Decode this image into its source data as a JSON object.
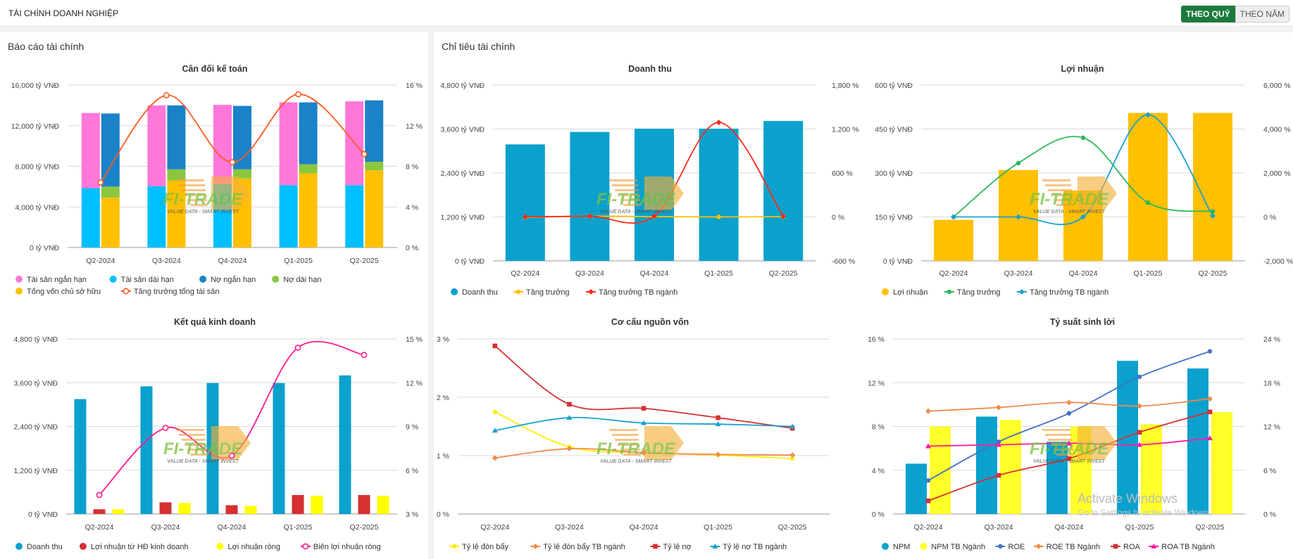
{
  "header": {
    "title": "TÀI CHÍNH DOANH NGHIỆP",
    "btn_quarter": "THEO QUÝ",
    "btn_year": "THEO NĂM"
  },
  "left_panel": {
    "title": "Báo cáo tài chính"
  },
  "right_panel": {
    "title": "Chỉ tiêu tài chính"
  },
  "watermark": {
    "logo": "FI-TRADE",
    "slogan": "VALUE DATA - SMART INVEST"
  },
  "activation": {
    "title": "Activate Windows",
    "subtitle": "Go to Settings to activate Windows."
  },
  "colors": {
    "accent": "#1c7a3c",
    "pink": "#ff77d9",
    "cyan": "#00bfff",
    "blue": "#1a82c8",
    "green": "#8cc63f",
    "yellow": "#ffc000",
    "orange": "#ff5a1f",
    "teal": "#0aa1cc",
    "red": "#d63031",
    "lime": "#ffff00"
  },
  "chart_data": [
    {
      "id": "c1",
      "type": "bar",
      "title": "Cân đối kế toán",
      "categories": [
        "Q2-2024",
        "Q3-2024",
        "Q4-2024",
        "Q1-2025",
        "Q2-2025"
      ],
      "y_left": {
        "ticks": [
          "0 tỷ VNĐ",
          "4,000 tỷ VNĐ",
          "8,000 tỷ VNĐ",
          "12,000 tỷ VNĐ",
          "16,000 tỷ VNĐ"
        ],
        "min": 0,
        "max": 16000
      },
      "y_right": {
        "ticks": [
          "0 %",
          "4 %",
          "8 %",
          "12 %",
          "16 %"
        ],
        "min": 0,
        "max": 16
      },
      "stacks": [
        {
          "name": "Tài sản ngắn hạn",
          "color": "#ff77d9",
          "group": 0,
          "values": [
            7400,
            7950,
            7800,
            8150,
            8250
          ]
        },
        {
          "name": "Tài sản dài hạn",
          "color": "#00bfff",
          "group": 0,
          "values": [
            5850,
            6050,
            6250,
            6150,
            6150
          ]
        },
        {
          "name": "Nợ ngắn hạn",
          "color": "#1a82c8",
          "group": 1,
          "values": [
            7200,
            6300,
            6250,
            6100,
            6050
          ]
        },
        {
          "name": "Nợ dài hạn",
          "color": "#8cc63f",
          "group": 1,
          "values": [
            1100,
            1100,
            900,
            900,
            850
          ]
        },
        {
          "name": "Tổng vốn chủ sở hữu",
          "color": "#ffc000",
          "group": 1,
          "values": [
            4900,
            6600,
            6800,
            7300,
            7600
          ]
        }
      ],
      "lines": [
        {
          "name": "Tăng trưởng tổng tài sản",
          "color": "#ff5a1f",
          "axis": "right",
          "marker": "circle-open",
          "values": [
            6.4,
            15.0,
            8.4,
            15.1,
            9.2
          ]
        }
      ]
    },
    {
      "id": "c2",
      "type": "bar",
      "title": "Doanh thu",
      "categories": [
        "Q2-2024",
        "Q3-2024",
        "Q4-2024",
        "Q1-2025",
        "Q2-2025"
      ],
      "y_left": {
        "ticks": [
          "0 tỷ VNĐ",
          "1,200 tỷ VNĐ",
          "2,400 tỷ VNĐ",
          "3,600 tỷ VNĐ",
          "4,800 tỷ VNĐ"
        ],
        "min": 0,
        "max": 4800
      },
      "y_right": {
        "ticks": [
          "-600 %",
          "0 %",
          "600 %",
          "1,200 %",
          "1,800 %"
        ],
        "min": -600,
        "max": 1800
      },
      "bars": [
        {
          "name": "Doanh thu",
          "color": "#0aa1cc",
          "values": [
            3180,
            3520,
            3610,
            3610,
            3820
          ]
        }
      ],
      "lines": [
        {
          "name": "Tăng trưởng",
          "color": "#ffc000",
          "axis": "right",
          "marker": "circle",
          "values": [
            -5,
            10,
            5,
            0,
            5
          ]
        },
        {
          "name": "Tăng trưởng TB ngành",
          "color": "#ff2a1a",
          "axis": "right",
          "marker": "diamond",
          "values": [
            0,
            10,
            10,
            1290,
            10
          ]
        }
      ]
    },
    {
      "id": "c3",
      "type": "bar",
      "title": "Lợi nhuận",
      "categories": [
        "Q2-2024",
        "Q3-2024",
        "Q4-2024",
        "Q1-2025",
        "Q2-2025"
      ],
      "y_left": {
        "ticks": [
          "0 tỷ VNĐ",
          "150 tỷ VNĐ",
          "300 tỷ VNĐ",
          "450 tỷ VNĐ",
          "600 tỷ VNĐ"
        ],
        "min": 0,
        "max": 600
      },
      "y_right": {
        "ticks": [
          "-2,000 %",
          "0 %",
          "2,000 %",
          "4,000 %",
          "6,000 %"
        ],
        "min": -2000,
        "max": 6000
      },
      "bars": [
        {
          "name": "Lợi nhuận",
          "color": "#ffc000",
          "values": [
            140,
            310,
            240,
            505,
            505
          ]
        }
      ],
      "lines": [
        {
          "name": "Tăng trưởng",
          "color": "#2db85c",
          "axis": "right",
          "marker": "circle",
          "values": [
            0,
            2450,
            3600,
            650,
            250
          ]
        },
        {
          "name": "Tăng trưởng TB ngành",
          "color": "#1aa1d0",
          "axis": "right",
          "marker": "diamond",
          "values": [
            0,
            0,
            0,
            4650,
            50
          ]
        }
      ]
    },
    {
      "id": "c4",
      "type": "bar",
      "title": "Kết quả kinh doanh",
      "categories": [
        "Q2-2024",
        "Q3-2024",
        "Q4-2024",
        "Q1-2025",
        "Q2-2025"
      ],
      "y_left": {
        "ticks": [
          "0 tỷ VNĐ",
          "1,200 tỷ VNĐ",
          "2,400 tỷ VNĐ",
          "3,600 tỷ VNĐ",
          "4,800 tỷ VNĐ"
        ],
        "min": 0,
        "max": 4800
      },
      "y_right": {
        "ticks": [
          "3 %",
          "6 %",
          "9 %",
          "12 %",
          "15 %"
        ],
        "min": 3,
        "max": 15
      },
      "bars": [
        {
          "name": "Doanh thu",
          "color": "#0aa1cc",
          "values": [
            3150,
            3500,
            3590,
            3590,
            3800
          ]
        },
        {
          "name": "Lợi nhuận từ HĐ kinh doanh",
          "color": "#d63031",
          "values": [
            130,
            320,
            240,
            520,
            520
          ]
        },
        {
          "name": "Lợi nhuận ròng",
          "color": "#ffff00",
          "values": [
            130,
            300,
            220,
            500,
            500
          ]
        }
      ],
      "lines": [
        {
          "name": "Biên lợi nhuận ròng",
          "color": "#ff1a8c",
          "axis": "right",
          "marker": "circle-open",
          "values": [
            4.3,
            8.9,
            7.0,
            14.4,
            13.9
          ]
        }
      ]
    },
    {
      "id": "c5",
      "type": "line",
      "title": "Cơ cấu nguồn vốn",
      "categories": [
        "Q2-2024",
        "Q3-2024",
        "Q4-2024",
        "Q1-2025",
        "Q2-2025"
      ],
      "y_left": {
        "ticks": [
          "0 %",
          "1 %",
          "2 %",
          "3 %"
        ],
        "min": 0,
        "max": 3
      },
      "lines": [
        {
          "name": "Tỷ lệ đòn bẩy",
          "color": "#ffee00",
          "axis": "left",
          "marker": "circle",
          "values": [
            1.75,
            1.15,
            1.05,
            1.01,
            0.95
          ]
        },
        {
          "name": "Tỷ lệ đòn bẩy TB ngành",
          "color": "#f08a4b",
          "axis": "left",
          "marker": "diamond",
          "values": [
            0.96,
            1.12,
            1.05,
            1.02,
            1.01
          ]
        },
        {
          "name": "Tỷ lệ nợ",
          "color": "#d63031",
          "axis": "left",
          "marker": "square",
          "values": [
            2.88,
            1.88,
            1.81,
            1.65,
            1.47
          ]
        },
        {
          "name": "Tỷ lệ nợ TB ngành",
          "color": "#1aa1d0",
          "axis": "left",
          "marker": "triangle",
          "values": [
            1.43,
            1.65,
            1.56,
            1.54,
            1.5
          ]
        }
      ]
    },
    {
      "id": "c6",
      "type": "bar",
      "title": "Tỷ suất sinh lời",
      "categories": [
        "Q2-2024",
        "Q3-2024",
        "Q4-2024",
        "Q1-2025",
        "Q2-2025"
      ],
      "y_left": {
        "ticks": [
          "0 %",
          "4 %",
          "8 %",
          "12 %",
          "16 %"
        ],
        "min": 0,
        "max": 16
      },
      "y_right": {
        "ticks": [
          "0 %",
          "6 %",
          "12 %",
          "18 %",
          "24 %"
        ],
        "min": 0,
        "max": 24
      },
      "bars": [
        {
          "name": "NPM",
          "color": "#0aa1cc",
          "values": [
            4.6,
            8.9,
            6.6,
            14.0,
            13.3
          ]
        },
        {
          "name": "NPM TB Ngành",
          "color": "#ffff2a",
          "values": [
            8.0,
            8.6,
            8.0,
            8.2,
            9.3
          ]
        }
      ],
      "lines": [
        {
          "name": "ROE",
          "color": "#4472c4",
          "axis": "right",
          "marker": "circle",
          "values": [
            4.6,
            9.9,
            13.8,
            18.8,
            22.3
          ]
        },
        {
          "name": "ROE TB Ngành",
          "color": "#f08a4b",
          "axis": "right",
          "marker": "diamond",
          "values": [
            14.1,
            14.6,
            15.3,
            14.8,
            15.8
          ]
        },
        {
          "name": "ROA",
          "color": "#d63031",
          "axis": "right",
          "marker": "square",
          "values": [
            1.8,
            5.3,
            7.6,
            11.2,
            14.0
          ]
        },
        {
          "name": "ROA TB Ngành",
          "color": "#ff1aa8",
          "axis": "right",
          "marker": "triangle",
          "values": [
            9.3,
            9.5,
            9.7,
            9.5,
            10.4
          ]
        }
      ]
    }
  ]
}
